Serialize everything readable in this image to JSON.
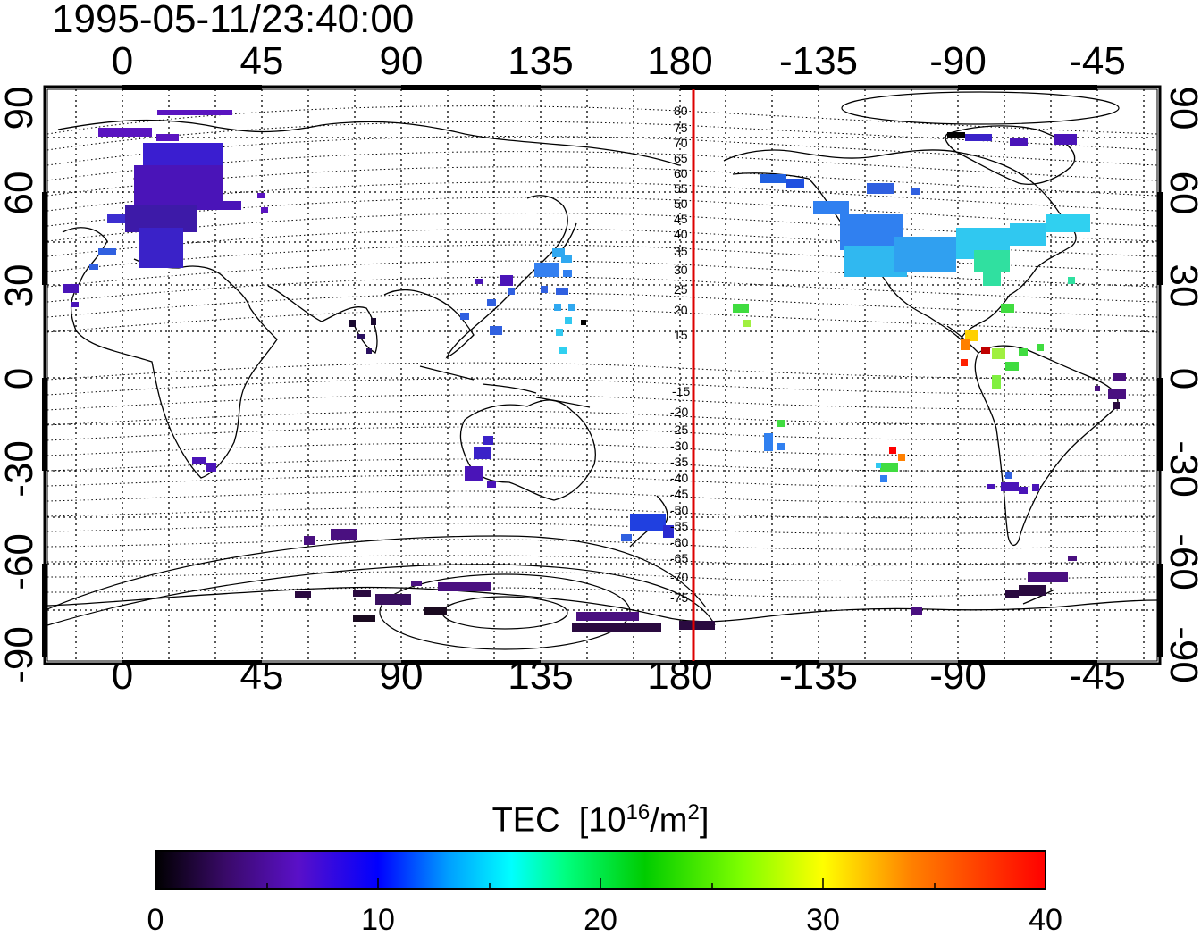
{
  "timestamp": "1995-05-11/23:40:00",
  "map": {
    "lon_ticks": [
      "0",
      "45",
      "90",
      "135",
      "180",
      "-135",
      "-90",
      "-45"
    ],
    "lat_ticks": [
      "90",
      "60",
      "30",
      "0",
      "-30",
      "-60",
      "-90"
    ],
    "meridian_line_color": "#dd0000",
    "contour_labels_north": [
      "80",
      "75",
      "70",
      "65",
      "60",
      "55",
      "50",
      "45",
      "40",
      "35",
      "30",
      "25",
      "20",
      "15"
    ],
    "contour_labels_south": [
      "-15",
      "-20",
      "-25",
      "-30",
      "-35",
      "-40",
      "-45",
      "-50",
      "-55",
      "-60",
      "-65",
      "-70",
      "-75"
    ]
  },
  "colorbar": {
    "title": "TEC",
    "units_prefix": "[10",
    "units_exp": "16",
    "units_mid": "/m",
    "units_exp2": "2",
    "units_suffix": "]",
    "tick_labels": [
      "0",
      "10",
      "20",
      "30",
      "40"
    ],
    "stops": [
      "#000000",
      "#3a0a6a",
      "#5a10c8",
      "#0000ff",
      "#00a0ff",
      "#00ffff",
      "#00ff80",
      "#00cc00",
      "#80ff00",
      "#ffff00",
      "#ff8000",
      "#ff0000"
    ]
  }
}
